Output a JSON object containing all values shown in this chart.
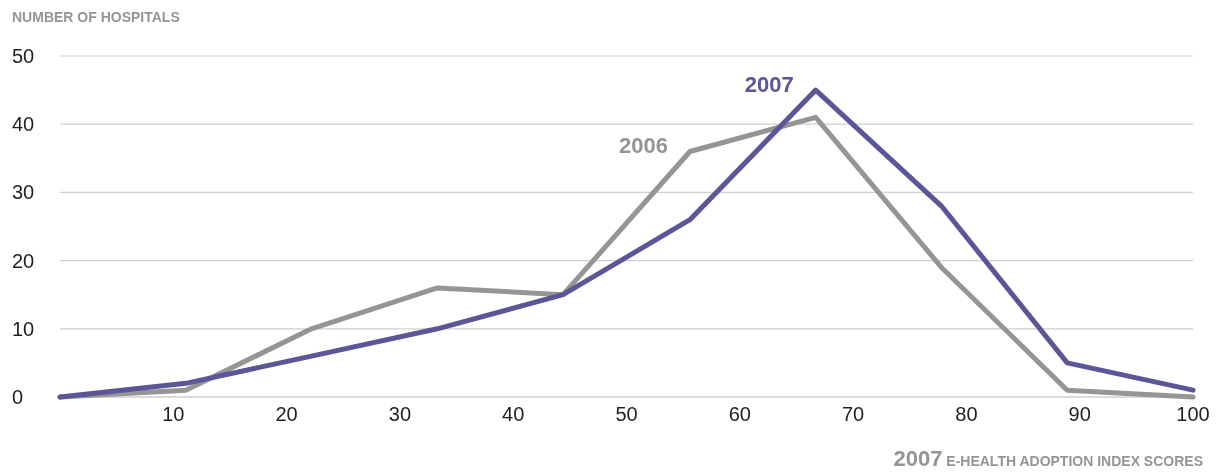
{
  "chart_data": {
    "type": "line",
    "ylabel": "NUMBER OF HOSPITALS",
    "xlabel": "2007 E-HEALTH ADOPTION INDEX SCORES",
    "x": [
      0,
      11.1,
      22.2,
      33.3,
      44.4,
      55.6,
      66.7,
      77.8,
      88.9,
      100
    ],
    "series": [
      {
        "name": "2006",
        "color": "#959595",
        "values": [
          0,
          1,
          10,
          16,
          15,
          36,
          41,
          19,
          1,
          0
        ]
      },
      {
        "name": "2007",
        "color": "#5b5698",
        "values": [
          0,
          2,
          6,
          10,
          15,
          26,
          45,
          28,
          5,
          1
        ]
      }
    ],
    "xlim": [
      0,
      100
    ],
    "xticks": [
      10,
      20,
      30,
      40,
      50,
      60,
      70,
      80,
      90,
      100
    ],
    "ylim": [
      0,
      50
    ],
    "yticks": [
      0,
      10,
      20,
      30,
      40,
      50
    ],
    "grid": "y",
    "marker": "none",
    "line_style": "solid"
  }
}
